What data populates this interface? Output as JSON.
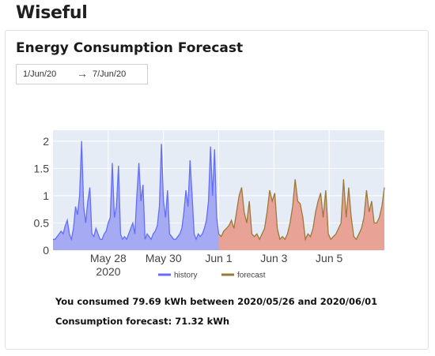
{
  "app": {
    "title": "Wiseful"
  },
  "card": {
    "title": "Energy Consumption Forecast"
  },
  "date_range": {
    "start": "1/Jun/20",
    "arrow": "→",
    "end": "7/Jun/20"
  },
  "stats": {
    "consumed_text": "You consumed 79.69 kWh between 2020/05/26 and 2020/06/01",
    "forecast_text": "Consumption forecast: 71.32 kWh"
  },
  "colors": {
    "plot_bg": "#e5ecf6",
    "history_line": "#636efa",
    "history_fill": "#a6aaf2",
    "forecast_line": "#9a7a3c",
    "forecast_fill": "#e8a396"
  },
  "chart_data": {
    "type": "area",
    "x_start": "2020-05-26",
    "x_end": "2020-06-07",
    "xlim": [
      "2020-05-26",
      "2020-06-07"
    ],
    "ylim": [
      0,
      2.2
    ],
    "y_ticks": [
      0,
      0.5,
      1,
      1.5,
      2
    ],
    "y_tick_labels": [
      "0",
      "0.5",
      "1",
      "1.5",
      "2"
    ],
    "x_ticks": [
      "2020-05-28",
      "2020-05-30",
      "2020-06-01",
      "2020-06-03",
      "2020-06-05"
    ],
    "x_tick_labels": [
      "May 28",
      "May 30",
      "Jun 1",
      "Jun 3",
      "Jun 5"
    ],
    "x_tick_sublabel": "2020",
    "grid": true,
    "legend": "bottom-center",
    "series": [
      {
        "name": "history",
        "x_start": "2020-05-26",
        "x_end": "2020-06-01",
        "values": [
          0.2,
          0.2,
          0.25,
          0.3,
          0.35,
          0.3,
          0.45,
          0.55,
          0.3,
          0.2,
          0.4,
          0.8,
          0.65,
          1.0,
          2.0,
          0.8,
          0.5,
          0.9,
          1.15,
          0.3,
          0.25,
          0.4,
          0.3,
          0.2,
          0.2,
          0.3,
          0.35,
          0.5,
          0.6,
          1.6,
          0.6,
          0.8,
          1.55,
          0.3,
          0.2,
          0.25,
          0.2,
          0.3,
          0.4,
          0.5,
          0.3,
          1.0,
          1.6,
          0.9,
          1.2,
          0.2,
          0.3,
          0.25,
          0.2,
          0.3,
          0.35,
          0.45,
          0.8,
          1.95,
          0.9,
          0.6,
          1.1,
          0.3,
          0.25,
          0.2,
          0.2,
          0.25,
          0.3,
          0.4,
          0.7,
          1.1,
          0.8,
          1.65,
          1.0,
          0.3,
          0.2,
          0.3,
          0.25,
          0.3,
          0.4,
          0.55,
          0.9,
          1.9,
          1.0,
          1.85,
          0.6,
          0.3
        ]
      },
      {
        "name": "forecast",
        "x_start": "2020-06-01",
        "x_end": "2020-06-07",
        "values": [
          0.3,
          0.25,
          0.35,
          0.4,
          0.45,
          0.55,
          0.4,
          0.7,
          1.0,
          1.15,
          0.7,
          0.5,
          0.9,
          0.3,
          0.25,
          0.3,
          0.2,
          0.3,
          0.4,
          0.7,
          1.1,
          0.9,
          1.05,
          0.4,
          0.2,
          0.25,
          0.2,
          0.3,
          0.5,
          0.8,
          1.3,
          0.9,
          0.85,
          0.6,
          0.2,
          0.3,
          0.25,
          0.4,
          0.7,
          0.9,
          1.05,
          0.6,
          1.1,
          0.3,
          0.2,
          0.25,
          0.3,
          0.4,
          0.5,
          1.3,
          0.6,
          1.15,
          0.6,
          0.25,
          0.2,
          0.3,
          0.4,
          0.6,
          1.1,
          0.7,
          0.9,
          0.5,
          0.5,
          0.6,
          0.8,
          1.15
        ]
      }
    ]
  }
}
